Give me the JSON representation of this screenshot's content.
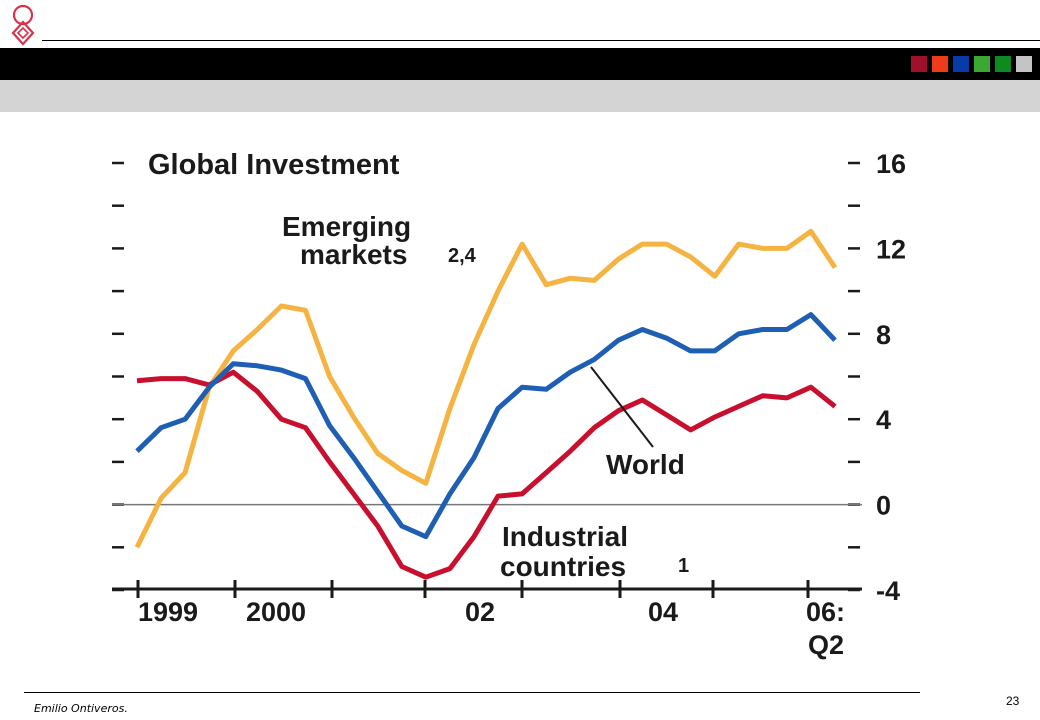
{
  "slide": {
    "footer_author": "Emilio Ontiveros.",
    "page_number": "23",
    "swatch_colors": [
      "#a0102a",
      "#ee3b1a",
      "#0a3aa8",
      "#3aa832",
      "#0e8a1e",
      "#c4c4c4"
    ]
  },
  "chart_data": {
    "type": "line",
    "title": "Global Investment",
    "x_tick_labels": [
      "1999",
      "2000",
      "02",
      "04",
      "06:",
      "Q2"
    ],
    "y_tick_labels": [
      "16",
      "12",
      "8",
      "4",
      "0",
      "-4"
    ],
    "ylim": [
      -4,
      16
    ],
    "grid": false,
    "zero_line": true,
    "series": [
      {
        "name": "Emerging markets",
        "name_line1": "Emerging",
        "name_line2": "markets",
        "footnote": "2,4",
        "color": "#f5b342",
        "values": [
          -2.0,
          0.3,
          1.5,
          5.5,
          7.2,
          8.2,
          9.3,
          9.1,
          6.0,
          4.1,
          2.4,
          1.6,
          1.0,
          4.5,
          7.5,
          10.0,
          12.2,
          10.3,
          10.6,
          10.5,
          11.5,
          12.2,
          12.2,
          11.6,
          10.7,
          12.2,
          12.0,
          12.0,
          12.8,
          11.1
        ]
      },
      {
        "name": "World",
        "name_line1": "World",
        "color": "#1e5fb4",
        "values": [
          2.5,
          3.6,
          4.0,
          5.5,
          6.6,
          6.5,
          6.3,
          5.9,
          3.7,
          2.2,
          0.6,
          -1.0,
          -1.5,
          0.5,
          2.2,
          4.5,
          5.5,
          5.4,
          6.2,
          6.8,
          7.7,
          8.2,
          7.8,
          7.2,
          7.2,
          8.0,
          8.2,
          8.2,
          8.9,
          7.7
        ]
      },
      {
        "name": "Industrial countries",
        "name_line1": "Industrial",
        "name_line2": "countries",
        "footnote": "1",
        "color": "#c8102e",
        "values": [
          5.8,
          5.9,
          5.9,
          5.6,
          6.2,
          5.3,
          4.0,
          3.6,
          2.0,
          0.5,
          -1.0,
          -2.9,
          -3.4,
          -3.0,
          -1.5,
          0.4,
          0.5,
          1.5,
          2.5,
          3.6,
          4.4,
          4.9,
          4.2,
          3.5,
          4.1,
          4.6,
          5.1,
          5.0,
          5.5,
          4.6
        ]
      }
    ]
  }
}
